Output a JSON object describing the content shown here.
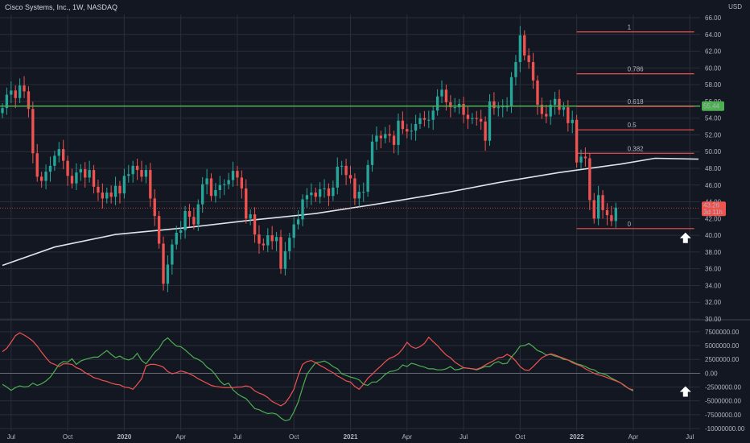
{
  "header": {
    "title": "Cisco Systems, Inc., 1W, NASDAQ",
    "currency": "USD"
  },
  "colors": {
    "background": "#131722",
    "up": "#26a69a",
    "down": "#ef5350",
    "grid": "#2a2e39",
    "text": "#b2b5be",
    "support_line": "#4caf50",
    "moving_average": "#e0e3eb",
    "fib": "#ef5350",
    "osc_green": "#4caf50",
    "osc_red": "#ef5350"
  },
  "chart_data": [
    {
      "type": "candlestick",
      "name": "price",
      "ylim": [
        30,
        66
      ],
      "y_ticks": [
        "30.00",
        "32.00",
        "34.00",
        "36.00",
        "38.00",
        "40.00",
        "42.00",
        "44.00",
        "46.00",
        "48.00",
        "50.00",
        "52.00",
        "54.00",
        "56.00",
        "58.00",
        "60.00",
        "62.00",
        "64.00",
        "66.00"
      ],
      "x_ticks": [
        "Jul",
        "Oct",
        "2020",
        "Apr",
        "Jul",
        "Oct",
        "2021",
        "Apr",
        "Jul",
        "Oct",
        "2022",
        "Apr",
        "Jul"
      ],
      "x_tick_bold": [
        false,
        false,
        true,
        false,
        false,
        false,
        true,
        false,
        false,
        false,
        true,
        false,
        false
      ],
      "x_tick_week": [
        0,
        13,
        26,
        39,
        52,
        65,
        78,
        91,
        104,
        117,
        130,
        143,
        156
      ],
      "first_week": -2,
      "last_week": 158,
      "closes": [
        55.2,
        56.8,
        57.3,
        56.4,
        57.9,
        57.2,
        55.1,
        49.8,
        47.0,
        46.5,
        47.6,
        48.3,
        49.5,
        50.3,
        48.9,
        47.1,
        46.2,
        47.5,
        47.9,
        46.9,
        47.8,
        45.8,
        45.1,
        44.4,
        45.1,
        44.6,
        45.9,
        45.0,
        47.1,
        47.3,
        48.3,
        47.8,
        47.0,
        47.8,
        44.4,
        42.3,
        39.0,
        34.2,
        36.5,
        38.9,
        40.3,
        40.6,
        42.9,
        42.2,
        41.3,
        43.7,
        46.1,
        46.8,
        44.7,
        45.4,
        46.0,
        46.1,
        46.6,
        47.7,
        46.9,
        45.6,
        42.0,
        42.5,
        40.1,
        39.0,
        38.8,
        40.0,
        39.3,
        39.8,
        36.0,
        38.1,
        39.7,
        41.3,
        41.9,
        44.3,
        44.8,
        45.1,
        44.6,
        45.5,
        45.6,
        44.7,
        45.7,
        48.2,
        48.3,
        47.2,
        46.8,
        44.4,
        45.2,
        45.2,
        48.4,
        51.2,
        51.9,
        51.6,
        52.1,
        51.9,
        50.8,
        53.7,
        52.7,
        52.4,
        52.5,
        53.3,
        54.0,
        53.8,
        53.8,
        54.9,
        56.6,
        57.4,
        55.9,
        55.3,
        55.3,
        55.7,
        54.4,
        53.9,
        54.0,
        53.9,
        53.6,
        51.3,
        56.0,
        55.2,
        55.3,
        55.4,
        55.4,
        58.9,
        60.7,
        63.9,
        61.5,
        60.7,
        58.5,
        55.6,
        54.5,
        54.2,
        55.6,
        56.3,
        55.0,
        55.3,
        53.4,
        53.8,
        48.7,
        49.4,
        49.2,
        44.2,
        42.0,
        44.8,
        43.0,
        42.4,
        41.7,
        43.3
      ],
      "opens_note": "open equals previous close",
      "support_line": {
        "value": 55.44,
        "label": "55.44"
      },
      "moving_average": [
        {
          "week": -2,
          "value": 36.4
        },
        {
          "week": 10,
          "value": 38.6
        },
        {
          "week": 24,
          "value": 40.1
        },
        {
          "week": 40,
          "value": 40.9
        },
        {
          "week": 55,
          "value": 41.8
        },
        {
          "week": 70,
          "value": 42.6
        },
        {
          "week": 85,
          "value": 43.8
        },
        {
          "week": 100,
          "value": 45.1
        },
        {
          "week": 112,
          "value": 46.3
        },
        {
          "week": 126,
          "value": 47.5
        },
        {
          "week": 140,
          "value": 48.5
        },
        {
          "week": 148,
          "value": 49.2
        },
        {
          "week": 158,
          "value": 49.1
        }
      ],
      "fibonacci": {
        "start_week": 130,
        "end_week": 157,
        "levels": [
          {
            "label": "1",
            "value": 64.3
          },
          {
            "label": "0.786",
            "value": 59.3
          },
          {
            "label": "0.618",
            "value": 55.4
          },
          {
            "label": "0.5",
            "value": 52.6
          },
          {
            "label": "0.382",
            "value": 49.8
          },
          {
            "label": "0",
            "value": 40.8
          }
        ]
      },
      "price_tag": {
        "price": "43.26",
        "countdown": "3d 11h",
        "value": 43.26
      },
      "arrow_week": 155
    },
    {
      "type": "line",
      "name": "oscillator",
      "ylim": [
        -10000000,
        8500000
      ],
      "y_ticks": [
        "7500000.00",
        "5000000.00",
        "2500000.00",
        "0.00",
        "-2500000.00",
        "-5000000.00",
        "-7500000.00",
        "-10000000.00"
      ],
      "zero_line": 0,
      "series": [
        {
          "color": "#4caf50",
          "values": [
            -2.0,
            -2.5,
            -3.1,
            -2.6,
            -2.3,
            -2.5,
            -2.4,
            -1.8,
            -2.2,
            -1.9,
            -1.4,
            -0.7,
            0.4,
            1.6,
            2.1,
            2.0,
            2.6,
            1.6,
            2.2,
            2.5,
            2.7,
            2.9,
            2.9,
            3.5,
            4.1,
            3.4,
            2.8,
            3.1,
            2.6,
            2.4,
            2.7,
            3.6,
            2.3,
            1.7,
            2.7,
            3.8,
            4.5,
            5.8,
            6.4,
            5.6,
            4.9,
            4.8,
            4.2,
            3.5,
            2.8,
            2.5,
            2.0,
            1.1,
            0.6,
            -0.3,
            -1.4,
            -2.1,
            -1.8,
            -3.0,
            -3.7,
            -4.2,
            -4.6,
            -5.5,
            -6.4,
            -6.6,
            -7.0,
            -7.3,
            -7.2,
            -7.4,
            -8.1,
            -8.6,
            -8.4,
            -7.0,
            -5.2,
            -2.6,
            -0.2,
            0.9,
            1.9,
            2.0,
            2.2,
            1.8,
            1.2,
            0.8,
            -0.1,
            -0.4,
            -0.7,
            -0.9,
            -1.2,
            -2.0,
            -2.2,
            -1.6,
            -1.6,
            -1.0,
            -0.2,
            0.3,
            0.4,
            0.7,
            1.5,
            1.2,
            1.8,
            1.6,
            1.3,
            1.1,
            0.8,
            0.8,
            0.6,
            0.6,
            0.8,
            1.2,
            0.6,
            0.7,
            1.0,
            0.9,
            0.8,
            0.6,
            0.9,
            1.2,
            1.2,
            1.8,
            2.1,
            1.7,
            1.8,
            2.9,
            3.8,
            4.9,
            5.0,
            5.4,
            4.8,
            4.1,
            3.8,
            3.3,
            3.4,
            3.1,
            2.9,
            2.5,
            2.4,
            2.1,
            1.7,
            1.5,
            1.2,
            0.8,
            0.6,
            0.1,
            -0.1,
            -0.4,
            -0.9,
            -1.3,
            -1.7,
            -2.3,
            -2.8,
            -3.2
          ]
        },
        {
          "color": "#ef5350",
          "values": [
            3.9,
            4.5,
            5.6,
            6.8,
            7.3,
            6.9,
            6.4,
            5.8,
            4.9,
            3.8,
            2.8,
            1.9,
            1.6,
            1.2,
            1.7,
            1.7,
            1.6,
            1.0,
            0.7,
            0.1,
            -0.3,
            -0.8,
            -1.0,
            -1.3,
            -1.5,
            -1.8,
            -2.0,
            -2.1,
            -2.5,
            -2.6,
            -2.9,
            -2.0,
            -1.0,
            1.3,
            1.6,
            1.6,
            1.4,
            1.1,
            0.3,
            -0.1,
            0.1,
            0.4,
            0.2,
            -0.1,
            -0.5,
            -1.0,
            -1.4,
            -1.8,
            -2.2,
            -2.4,
            -2.5,
            -2.6,
            -2.6,
            -2.6,
            -2.5,
            -2.5,
            -2.3,
            -2.5,
            -3.2,
            -3.6,
            -3.9,
            -4.4,
            -5.1,
            -5.5,
            -5.9,
            -5.4,
            -4.3,
            -2.9,
            -0.4,
            1.6,
            2.1,
            2.3,
            1.9,
            1.4,
            1.0,
            0.5,
            0.1,
            -0.5,
            -0.9,
            -1.4,
            -1.6,
            -2.4,
            -2.9,
            -2.0,
            -0.9,
            -0.2,
            0.6,
            1.3,
            2.1,
            2.7,
            3.0,
            3.5,
            4.4,
            5.6,
            4.8,
            4.5,
            4.8,
            5.4,
            6.5,
            5.7,
            5.0,
            4.1,
            3.3,
            2.8,
            2.0,
            1.5,
            1.0,
            0.9,
            0.8,
            0.7,
            1.0,
            1.5,
            1.9,
            2.3,
            2.8,
            2.9,
            3.4,
            3.0,
            2.2,
            1.2,
            0.6,
            0.5,
            1.2,
            2.0,
            2.8,
            3.2,
            3.5,
            3.3,
            3.0,
            2.7,
            2.4,
            1.9,
            1.6,
            1.3,
            0.8,
            0.4,
            0.0,
            -0.3,
            -0.5,
            -0.8,
            -1.1,
            -1.4,
            -1.7,
            -2.2,
            -2.8,
            -3.0
          ],
          "note": "values are in millions"
        }
      ],
      "arrow_week": 155
    }
  ]
}
